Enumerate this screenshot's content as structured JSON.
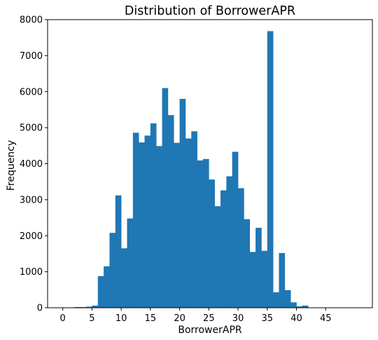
{
  "chart_data": {
    "type": "bar",
    "title": "Distribution of BorrowerAPR",
    "xlabel": "BorrowerAPR",
    "ylabel": "Frequency",
    "xlim": [
      -2.6,
      53.0
    ],
    "ylim": [
      0,
      8000
    ],
    "xticks": [
      "0",
      "5",
      "10",
      "15",
      "20",
      "25",
      "30",
      "35",
      "40",
      "45"
    ],
    "yticks": [
      "0",
      "1000",
      "2000",
      "3000",
      "4000",
      "5000",
      "6000",
      "7000",
      "8000"
    ],
    "grid": false,
    "color": "#1f77b4",
    "bin_width": 1,
    "bin_edges_start": 0,
    "values": [
      0,
      10,
      20,
      20,
      30,
      60,
      880,
      1150,
      2080,
      3120,
      1650,
      2480,
      4860,
      4590,
      4780,
      5120,
      4490,
      6100,
      5350,
      4580,
      5800,
      4700,
      4900,
      4090,
      4130,
      3560,
      2820,
      3260,
      3650,
      4330,
      3320,
      2460,
      1550,
      2220,
      1580,
      7680,
      430,
      1520,
      490,
      150,
      40,
      60
    ]
  }
}
